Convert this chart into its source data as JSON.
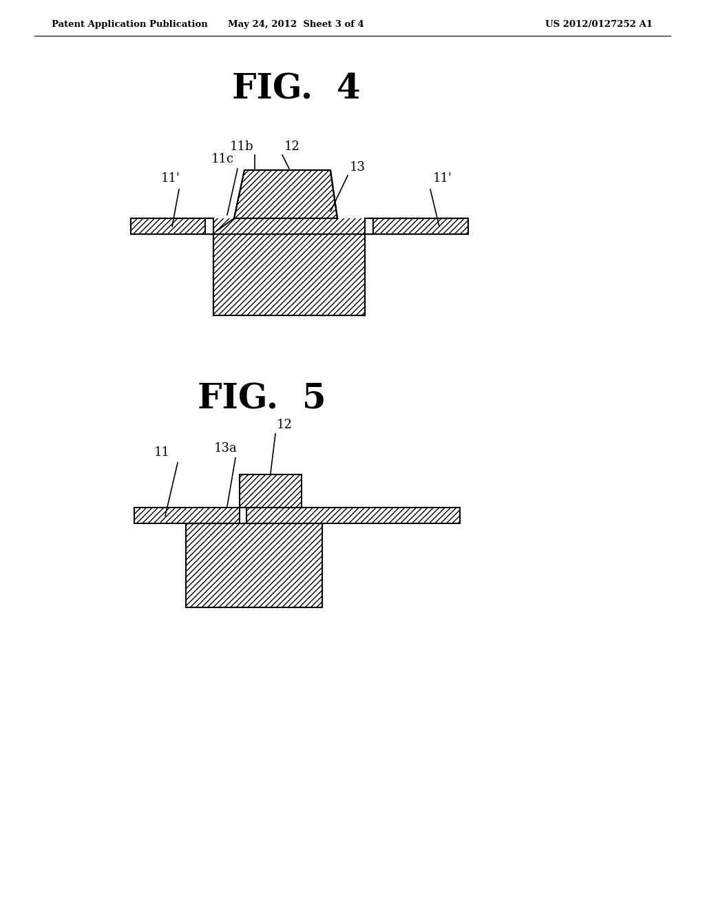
{
  "header_left": "Patent Application Publication",
  "header_center": "May 24, 2012  Sheet 3 of 4",
  "header_right": "US 2012/0127252 A1",
  "fig4_title": "FIG.  4",
  "fig5_title": "FIG.  5",
  "bg_color": "#ffffff",
  "line_color": "#000000"
}
